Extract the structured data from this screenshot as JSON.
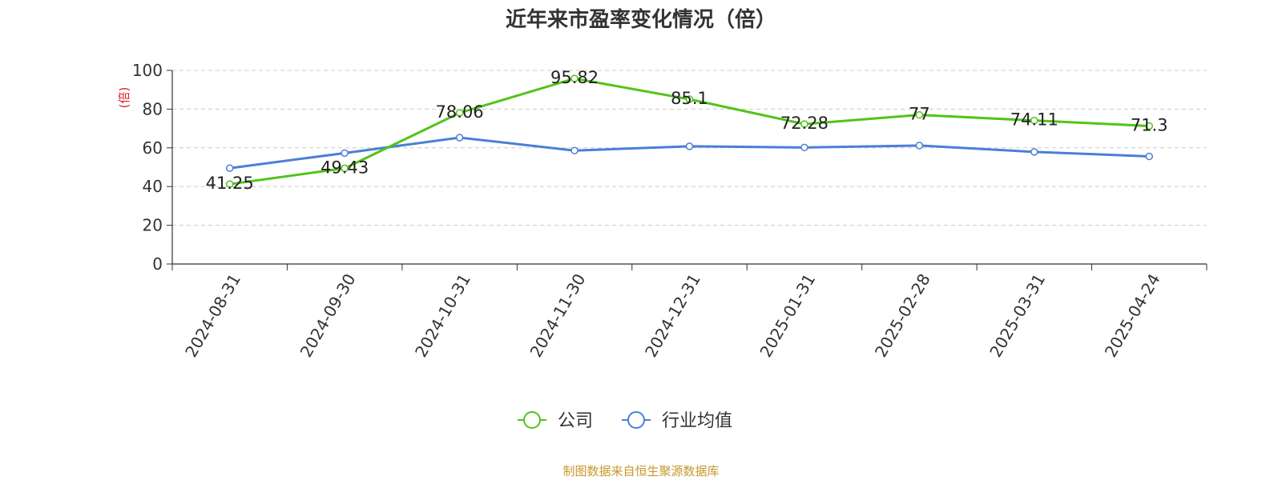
{
  "chart_data": {
    "type": "line",
    "title": "近年来市盈率变化情况（倍）",
    "ylabel": "(倍)",
    "xlabel": "",
    "categories": [
      "2024-08-31",
      "2024-09-30",
      "2024-10-31",
      "2024-11-30",
      "2024-12-31",
      "2025-01-31",
      "2025-02-28",
      "2025-03-31",
      "2025-04-24"
    ],
    "ylim": [
      0,
      100
    ],
    "yticks": [
      "0",
      "20",
      "40",
      "60",
      "80",
      "100"
    ],
    "grid": true,
    "legend_position": "bottom",
    "series": [
      {
        "name": "公司",
        "color": "#52c41a",
        "values": [
          41.25,
          49.43,
          78.06,
          95.82,
          85.1,
          72.28,
          77,
          74.11,
          71.3
        ],
        "labels": [
          "41.25",
          "49.43",
          "78.06",
          "95.82",
          "85.1",
          "72.28",
          "77",
          "74.11",
          "71.3"
        ]
      },
      {
        "name": "行业均值",
        "color": "#4a7fd8",
        "values": [
          49.5,
          57.3,
          65.3,
          58.6,
          60.8,
          60.2,
          61.2,
          57.9,
          55.6
        ]
      }
    ]
  },
  "footer": {
    "source": "制图数据来自恒生聚源数据库"
  },
  "colors": {
    "ylabel": "#e02020",
    "axis": "#333333",
    "grid": "#cccccc"
  }
}
